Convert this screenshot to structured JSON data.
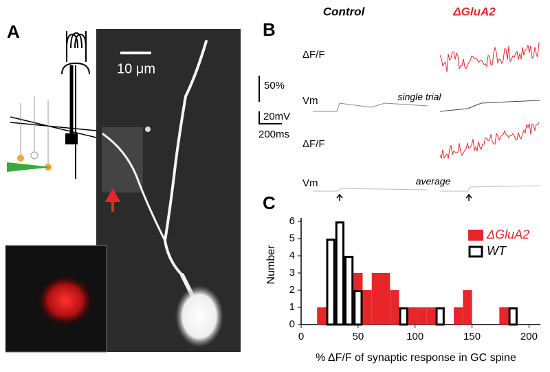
{
  "panels": {
    "a": {
      "letter": "A",
      "scale_bar": "10 μm"
    },
    "b": {
      "letter": "B",
      "control": "Control",
      "mutant": "ΔGluA2",
      "dff_top": "ΔF/F",
      "vm_top": "Vm",
      "dff_bottom": "ΔF/F",
      "vm_bottom": "Vm",
      "scale_dff": "50%",
      "scale_mv": "20mV",
      "scale_ms": "200ms",
      "single": "single trial",
      "average": "average"
    },
    "c": {
      "letter": "C"
    }
  },
  "chart_data": {
    "type": "histogram",
    "xlabel": "% ΔF/F of synaptic response in GC spine",
    "ylabel": "Number",
    "bins": [
      14,
      22,
      30,
      38,
      46,
      54,
      62,
      70,
      78,
      86,
      94,
      102,
      110,
      118,
      126,
      134,
      142,
      150,
      158,
      166,
      174,
      182,
      190
    ],
    "series": [
      {
        "name": "ΔGluA2",
        "color": "#e8262a",
        "style": "filled",
        "values": [
          1,
          1,
          1,
          2,
          3,
          2,
          3,
          3,
          2,
          1,
          1,
          1,
          1,
          1,
          0,
          1,
          2,
          0,
          0,
          0,
          1,
          1
        ]
      },
      {
        "name": "WT",
        "color": "#000000",
        "style": "outline",
        "values": [
          0,
          5,
          6,
          4,
          2,
          0,
          0,
          0,
          0,
          1,
          0,
          0,
          0,
          1,
          0,
          0,
          0,
          0,
          0,
          0,
          0,
          1
        ]
      }
    ],
    "xlim": [
      0,
      210
    ],
    "ylim": [
      0,
      6.2
    ],
    "xticks": [
      0,
      50,
      100,
      150,
      200
    ],
    "yticks": [
      0,
      1,
      2,
      3,
      4,
      5,
      6
    ],
    "legend": "upper right"
  }
}
